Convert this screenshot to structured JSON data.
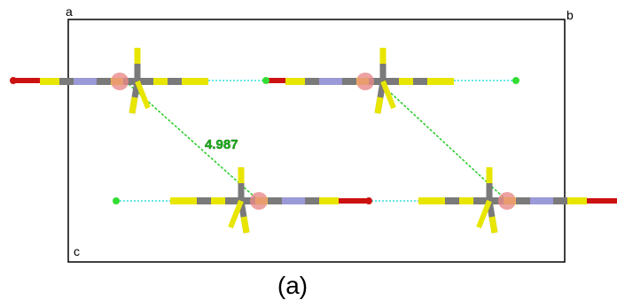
{
  "cell_labels": {
    "a": "a",
    "b": "b",
    "c": "c"
  },
  "distance": "4.987",
  "caption": "(a)"
}
